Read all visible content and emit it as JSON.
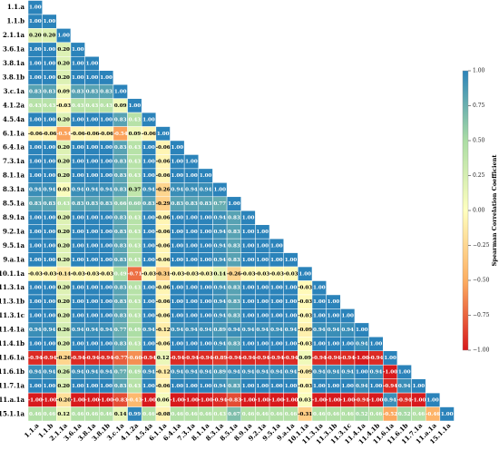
{
  "chart_data": {
    "type": "heatmap",
    "labels": [
      "1.1.a",
      "1.1.b",
      "2.1.1a",
      "3.6.1a",
      "3.8.1a",
      "3.8.1b",
      "3.c.1a",
      "4.1.2a",
      "4.5.4a",
      "6.1.1a",
      "6.4.1a",
      "7.3.1a",
      "8.1.1a",
      "8.3.1a",
      "8.5.1a",
      "8.9.1a",
      "9.2.1a",
      "9.5.1a",
      "9.a.1a",
      "10.1.1a",
      "11.3.1a",
      "11.3.1b",
      "11.3.1c",
      "11.4.1a",
      "11.4.1b",
      "11.6.1a",
      "11.6.1b",
      "11.7.1a",
      "11.a.1a",
      "15.1.1a"
    ],
    "values": [
      [
        1
      ],
      [
        1,
        1
      ],
      [
        0.2,
        0.2,
        1
      ],
      [
        1,
        1,
        0.2,
        1
      ],
      [
        1,
        1,
        0.2,
        1,
        1
      ],
      [
        1,
        1,
        0.2,
        1,
        1,
        1
      ],
      [
        0.83,
        0.83,
        0.09,
        0.83,
        0.83,
        0.83,
        1
      ],
      [
        0.43,
        0.43,
        -0.03,
        0.43,
        0.43,
        0.43,
        0.09,
        1
      ],
      [
        1,
        1,
        0.2,
        1,
        1,
        1,
        0.83,
        0.43,
        1
      ],
      [
        -0.06,
        -0.06,
        -0.54,
        -0.06,
        -0.06,
        -0.06,
        -0.54,
        0.09,
        -0.06,
        1
      ],
      [
        1,
        1,
        0.2,
        1,
        1,
        1,
        0.83,
        0.43,
        1,
        -0.06,
        1
      ],
      [
        1,
        1,
        0.2,
        1,
        1,
        1,
        0.83,
        0.43,
        1,
        -0.06,
        1,
        1
      ],
      [
        1,
        1,
        0.2,
        1,
        1,
        1,
        0.83,
        0.43,
        1,
        -0.06,
        1,
        1,
        1
      ],
      [
        0.94,
        0.94,
        0.03,
        0.94,
        0.94,
        0.94,
        0.83,
        0.37,
        0.94,
        -0.26,
        0.94,
        0.94,
        0.94,
        1
      ],
      [
        0.83,
        0.83,
        0.43,
        0.83,
        0.83,
        0.83,
        0.66,
        0.6,
        0.83,
        -0.29,
        0.83,
        0.83,
        0.83,
        0.77,
        1
      ],
      [
        1,
        1,
        0.2,
        1,
        1,
        1,
        0.83,
        0.43,
        1,
        -0.06,
        1,
        1,
        1,
        0.94,
        0.83,
        1
      ],
      [
        1,
        1,
        0.2,
        1,
        1,
        1,
        0.83,
        0.43,
        1,
        -0.06,
        1,
        1,
        1,
        0.94,
        0.83,
        1,
        1
      ],
      [
        1,
        1,
        0.2,
        1,
        1,
        1,
        0.83,
        0.43,
        1,
        -0.06,
        1,
        1,
        1,
        0.94,
        0.83,
        1,
        1,
        1
      ],
      [
        1,
        1,
        0.2,
        1,
        1,
        1,
        0.83,
        0.43,
        1,
        -0.06,
        1,
        1,
        1,
        0.94,
        0.83,
        1,
        1,
        1,
        1
      ],
      [
        -0.03,
        -0.03,
        -0.14,
        -0.03,
        -0.03,
        -0.03,
        0.49,
        -0.71,
        -0.03,
        -0.31,
        -0.03,
        -0.03,
        -0.03,
        0.14,
        -0.26,
        -0.03,
        -0.03,
        -0.03,
        -0.03,
        1
      ],
      [
        1,
        1,
        0.2,
        1,
        1,
        1,
        0.83,
        0.43,
        1,
        -0.06,
        1,
        1,
        1,
        0.94,
        0.83,
        1,
        1,
        1,
        1,
        -0.03,
        1
      ],
      [
        1,
        1,
        0.2,
        1,
        1,
        1,
        0.83,
        0.43,
        1,
        -0.06,
        1,
        1,
        1,
        0.94,
        0.83,
        1,
        1,
        1,
        1,
        -0.03,
        1,
        1
      ],
      [
        1,
        1,
        0.2,
        1,
        1,
        1,
        0.83,
        0.43,
        1,
        -0.06,
        1,
        1,
        1,
        0.94,
        0.83,
        1,
        1,
        1,
        1,
        -0.03,
        1,
        1,
        1
      ],
      [
        0.94,
        0.94,
        0.26,
        0.94,
        0.94,
        0.94,
        0.77,
        0.49,
        0.94,
        -0.12,
        0.94,
        0.94,
        0.94,
        0.89,
        0.94,
        0.94,
        0.94,
        0.94,
        0.94,
        -0.09,
        0.94,
        0.94,
        0.94,
        1
      ],
      [
        1,
        1,
        0.2,
        1,
        1,
        1,
        0.83,
        0.43,
        1,
        -0.06,
        1,
        1,
        1,
        0.94,
        0.83,
        1,
        1,
        1,
        1,
        -0.03,
        1,
        1,
        1,
        0.94,
        1
      ],
      [
        -0.94,
        -0.94,
        -0.26,
        -0.94,
        -0.94,
        -0.94,
        -0.77,
        -0.6,
        -0.94,
        0.12,
        -0.94,
        -0.94,
        -0.94,
        -0.89,
        -0.94,
        -0.94,
        -0.94,
        -0.94,
        -0.94,
        0.09,
        -0.94,
        -0.94,
        -0.94,
        -1,
        -0.94,
        1
      ],
      [
        0.94,
        0.94,
        0.26,
        0.94,
        0.94,
        0.94,
        0.77,
        0.49,
        0.94,
        -0.12,
        0.94,
        0.94,
        0.94,
        0.89,
        0.94,
        0.94,
        0.94,
        0.94,
        0.94,
        -0.09,
        0.94,
        0.94,
        0.94,
        1,
        0.94,
        -1,
        1
      ],
      [
        1,
        1,
        0.2,
        1,
        1,
        1,
        0.83,
        0.43,
        1,
        -0.06,
        1,
        1,
        1,
        0.94,
        0.83,
        1,
        1,
        1,
        1,
        -0.03,
        1,
        1,
        1,
        0.94,
        1,
        -0.94,
        0.94,
        1
      ],
      [
        -1,
        -1,
        -0.2,
        -1,
        -1,
        -1,
        -0.83,
        -0.43,
        -1,
        0.06,
        -1,
        -1,
        -1,
        -0.94,
        -0.83,
        -1,
        -1,
        -1,
        -1,
        0.03,
        -1,
        -1,
        -1,
        -0.94,
        -1,
        0.94,
        -0.94,
        -1,
        1
      ],
      [
        0.46,
        0.46,
        0.12,
        0.46,
        0.46,
        0.46,
        0.14,
        0.99,
        0.46,
        -0.08,
        0.46,
        0.46,
        0.46,
        0.43,
        0.67,
        0.46,
        0.46,
        0.46,
        0.46,
        -0.31,
        0.46,
        0.46,
        0.46,
        0.52,
        0.46,
        -0.52,
        0.52,
        0.46,
        -0.46,
        1
      ]
    ],
    "value_labels": [
      [
        "1.00"
      ],
      [
        "1.00",
        "1.00"
      ],
      [
        "0.20",
        "0.20",
        "1.00"
      ],
      [
        "1.00",
        "1.00",
        "0.20",
        "1.00"
      ],
      [
        "1.00",
        "1.00",
        "0.20",
        "1.00",
        "1.00"
      ],
      [
        "1.00",
        "1.00",
        "0.20",
        "1.00",
        "1.00",
        "1.00"
      ],
      [
        "0.83",
        "0.83",
        "0.09",
        "0.83",
        "0.83",
        "0.83",
        "1.00"
      ],
      [
        "0.43",
        "0.43",
        "-0.03",
        "0.43",
        "0.43",
        "0.43",
        "0.09",
        "1.00"
      ],
      [
        "1.00",
        "1.00",
        "0.20",
        "1.00",
        "1.00",
        "1.00",
        "0.83",
        "0.43",
        "1.00"
      ],
      [
        "-0.06",
        "-0.06",
        "-0.54",
        "-0.06",
        "-0.06",
        "-0.06",
        "-0.54",
        "0.09",
        "-0.06",
        "1.00"
      ],
      [
        "1.00",
        "1.00",
        "0.20",
        "1.00",
        "1.00",
        "1.00",
        "0.83",
        "0.43",
        "1.00",
        "-0.06",
        "1.00"
      ],
      [
        "1.00",
        "1.00",
        "0.20",
        "1.00",
        "1.00",
        "1.00",
        "0.83",
        "0.43",
        "1.00",
        "-0.06",
        "1.00",
        "1.00"
      ],
      [
        "1.00",
        "1.00",
        "0.20",
        "1.00",
        "1.00",
        "1.00",
        "0.83",
        "0.43",
        "1.00",
        "-0.06",
        "1.00",
        "1.00",
        "1.00"
      ],
      [
        "0.94",
        "0.94",
        "0.03",
        "0.94",
        "0.94",
        "0.94",
        "0.83",
        "0.37",
        "0.94",
        "-0.26",
        "0.94",
        "0.94",
        "0.94",
        "1.00"
      ],
      [
        "0.83",
        "0.83",
        "0.43",
        "0.83",
        "0.83",
        "0.83",
        "0.66",
        "0.60",
        "0.83",
        "-0.29",
        "0.83",
        "0.83",
        "0.83",
        "0.77",
        "1.00"
      ],
      [
        "1.00",
        "1.00",
        "0.20",
        "1.00",
        "1.00",
        "1.00",
        "0.83",
        "0.43",
        "1.00",
        "-0.06",
        "1.00",
        "1.00",
        "1.00",
        "0.94",
        "0.83",
        "1.00"
      ],
      [
        "1.00",
        "1.00",
        "0.20",
        "1.00",
        "1.00",
        "1.00",
        "0.83",
        "0.43",
        "1.00",
        "-0.06",
        "1.00",
        "1.00",
        "1.00",
        "0.94",
        "0.83",
        "1.00",
        "1.00"
      ],
      [
        "1.00",
        "1.00",
        "0.20",
        "1.00",
        "1.00",
        "1.00",
        "0.83",
        "0.43",
        "1.00",
        "-0.06",
        "1.00",
        "1.00",
        "1.00",
        "0.94",
        "0.83",
        "1.00",
        "1.00",
        "1.00"
      ],
      [
        "1.00",
        "1.00",
        "0.20",
        "1.00",
        "1.00",
        "1.00",
        "0.83",
        "0.43",
        "1.00",
        "-0.06",
        "1.00",
        "1.00",
        "1.00",
        "0.94",
        "0.83",
        "1.00",
        "1.00",
        "1.00",
        "1.00"
      ],
      [
        "-0.03",
        "-0.03",
        "-0.14",
        "-0.03",
        "-0.03",
        "-0.03",
        "0.49",
        "-0.71",
        "-0.03",
        "-0.31",
        "-0.03",
        "-0.03",
        "-0.03",
        "0.14",
        "-0.26",
        "-0.03",
        "-0.03",
        "-0.03",
        "-0.03",
        "1.00"
      ],
      [
        "1.00",
        "1.00",
        "0.20",
        "1.00",
        "1.00",
        "1.00",
        "0.83",
        "0.43",
        "1.00",
        "-0.06",
        "1.00",
        "1.00",
        "1.00",
        "0.94",
        "0.83",
        "1.00",
        "1.00",
        "1.00",
        "1.00",
        "-0.03",
        "1.00"
      ],
      [
        "1.00",
        "1.00",
        "0.20",
        "1.00",
        "1.00",
        "1.00",
        "0.83",
        "0.43",
        "1.00",
        "-0.06",
        "1.00",
        "1.00",
        "1.00",
        "0.94",
        "0.83",
        "1.00",
        "1.00",
        "1.00",
        "1.00",
        "-0.03",
        "1.00",
        "1.00"
      ],
      [
        "1.00",
        "1.00",
        "0.20",
        "1.00",
        "1.00",
        "1.00",
        "0.83",
        "0.43",
        "1.00",
        "-0.06",
        "1.00",
        "1.00",
        "1.00",
        "0.94",
        "0.83",
        "1.00",
        "1.00",
        "1.00",
        "1.00",
        "-0.03",
        "1.00",
        "1.00",
        "1.00"
      ],
      [
        "0.94",
        "0.94",
        "0.26",
        "0.94",
        "0.94",
        "0.94",
        "0.77",
        "0.49",
        "0.94",
        "-0.12",
        "0.94",
        "0.94",
        "0.94",
        "0.89",
        "0.94",
        "0.94",
        "0.94",
        "0.94",
        "0.94",
        "-0.09",
        "0.94",
        "0.94",
        "0.94",
        "1.00"
      ],
      [
        "1.00",
        "1.00",
        "0.20",
        "1.00",
        "1.00",
        "1.00",
        "0.83",
        "0.43",
        "1.00",
        "-0.06",
        "1.00",
        "1.00",
        "1.00",
        "0.94",
        "0.83",
        "1.00",
        "1.00",
        "1.00",
        "1.00",
        "-0.03",
        "1.00",
        "1.00",
        "1.00",
        "0.94",
        "1.00"
      ],
      [
        "-0.94",
        "-0.94",
        "-0.26",
        "-0.94",
        "-0.94",
        "-0.94",
        "-0.77",
        "-0.60",
        "-0.94",
        "0.12",
        "-0.94",
        "-0.94",
        "-0.94",
        "-0.89",
        "-0.94",
        "-0.94",
        "-0.94",
        "-0.94",
        "-0.94",
        "0.09",
        "-0.94",
        "-0.94",
        "-0.94",
        "-1.00",
        "-0.94",
        "1.00"
      ],
      [
        "0.94",
        "0.94",
        "0.26",
        "0.94",
        "0.94",
        "0.94",
        "0.77",
        "0.49",
        "0.94",
        "-0.12",
        "0.94",
        "0.94",
        "0.94",
        "0.89",
        "0.94",
        "0.94",
        "0.94",
        "0.94",
        "0.94",
        "-0.09",
        "0.94",
        "0.94",
        "0.94",
        "1.00",
        "0.94",
        "-1.00",
        "1.00"
      ],
      [
        "1.00",
        "1.00",
        "0.20",
        "1.00",
        "1.00",
        "1.00",
        "0.83",
        "0.43",
        "1.00",
        "-0.06",
        "1.00",
        "1.00",
        "1.00",
        "0.94",
        "0.83",
        "1.00",
        "1.00",
        "1.00",
        "1.00",
        "-0.03",
        "1.00",
        "1.00",
        "1.00",
        "0.94",
        "1.00",
        "-0.94",
        "0.94",
        "1.00"
      ],
      [
        "-1.00",
        "-1.00",
        "-0.20",
        "-1.00",
        "-1.00",
        "-1.00",
        "-0.83",
        "-0.43",
        "-1.00",
        "0.06",
        "-1.00",
        "-1.00",
        "-1.00",
        "-0.94",
        "-0.83",
        "-1.00",
        "-1.00",
        "-1.00",
        "-1.00",
        "0.03",
        "-1.00",
        "-1.00",
        "-1.00",
        "-0.94",
        "-1.00",
        "0.94",
        "-0.94",
        "-1.00",
        "1.00"
      ],
      [
        "0.46",
        "0.46",
        "0.12",
        "0.46",
        "0.46",
        "0.46",
        "0.14",
        "0.99",
        "0.46",
        "-0.08",
        "0.46",
        "0.46",
        "0.46",
        "0.43",
        "0.67",
        "0.46",
        "0.46",
        "0.46",
        "0.46",
        "-0.31",
        "0.46",
        "0.46",
        "0.46",
        "0.52",
        "0.46",
        "-0.52",
        "0.52",
        "0.46",
        "-0.46",
        "1.00"
      ]
    ],
    "zlim": [
      -1,
      1
    ],
    "zticks": [
      {
        "value": -1,
        "label": "−1.00"
      },
      {
        "value": -0.75,
        "label": "−0.75"
      },
      {
        "value": -0.5,
        "label": "−0.50"
      },
      {
        "value": -0.25,
        "label": "−0.25"
      },
      {
        "value": 0,
        "label": "0.00"
      },
      {
        "value": 0.25,
        "label": "0.25"
      },
      {
        "value": 0.5,
        "label": "0.50"
      },
      {
        "value": 0.75,
        "label": "0.75"
      },
      {
        "value": 1,
        "label": "1.00"
      }
    ],
    "colorbar_label": "Spearman Correlation Coefficient",
    "colormap": [
      "#d7191c",
      "#fdae61",
      "#ffffbf",
      "#abdda4",
      "#2b83ba"
    ]
  }
}
